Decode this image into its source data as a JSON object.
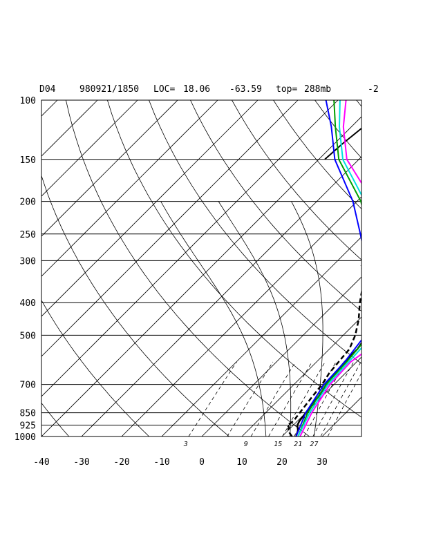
{
  "header": {
    "id": "D04",
    "datetime": "980921/1850",
    "loc_label": "LOC=",
    "lat": "18.06",
    "lon": "-63.59",
    "top_label": "top=",
    "top_value": "288mb",
    "extra": "-2"
  },
  "chart_data": {
    "type": "line",
    "title": "",
    "xlabel": "",
    "ylabel": "",
    "y_scale": "log-pressure",
    "ylim": [
      1000,
      100
    ],
    "grid": true,
    "pressure_ticks": [
      {
        "p": 100,
        "label": "100"
      },
      {
        "p": 150,
        "label": "150"
      },
      {
        "p": 200,
        "label": "200"
      },
      {
        "p": 250,
        "label": "250"
      },
      {
        "p": 300,
        "label": "300"
      },
      {
        "p": 400,
        "label": "400"
      },
      {
        "p": 500,
        "label": "500"
      },
      {
        "p": 700,
        "label": "700"
      },
      {
        "p": 850,
        "label": "850"
      },
      {
        "p": 925,
        "label": "925"
      },
      {
        "p": 1000,
        "label": "1000"
      }
    ],
    "temp_ticks": [
      {
        "t": -40,
        "label": "-40"
      },
      {
        "t": -30,
        "label": "-30"
      },
      {
        "t": -20,
        "label": "-20"
      },
      {
        "t": -10,
        "label": "-10"
      },
      {
        "t": 0,
        "label": "0"
      },
      {
        "t": 10,
        "label": "10"
      },
      {
        "t": 20,
        "label": "20"
      },
      {
        "t": 30,
        "label": "30"
      }
    ],
    "mixing_ratio_labels": [
      {
        "t": -4,
        "label": "3"
      },
      {
        "t": 11,
        "label": "9"
      },
      {
        "t": 19,
        "label": "15"
      },
      {
        "t": 24,
        "label": "21"
      },
      {
        "t": 28,
        "label": "27"
      }
    ],
    "series": [
      {
        "color": "#000000",
        "style": "solid",
        "width": 2.5,
        "points": [
          [
            1000,
            23.5
          ],
          [
            960,
            22.5
          ],
          [
            925,
            21
          ],
          [
            900,
            20.5
          ],
          [
            850,
            20
          ],
          [
            800,
            19.5
          ],
          [
            750,
            19
          ],
          [
            700,
            18
          ],
          [
            650,
            17.5
          ],
          [
            600,
            17
          ],
          [
            550,
            17
          ],
          [
            500,
            16
          ],
          [
            450,
            13.5
          ],
          [
            400,
            10
          ],
          [
            350,
            5
          ],
          [
            320,
            1.5
          ],
          [
            300,
            -1
          ]
        ]
      },
      {
        "color": "#000000",
        "style": "dashed",
        "width": 2.5,
        "points": [
          [
            1000,
            22.5
          ],
          [
            960,
            20
          ],
          [
            940,
            19.5
          ],
          [
            925,
            18.5
          ],
          [
            900,
            19
          ],
          [
            850,
            18.5
          ],
          [
            800,
            18
          ],
          [
            750,
            17.5
          ],
          [
            700,
            17
          ],
          [
            650,
            16
          ],
          [
            600,
            15.5
          ],
          [
            550,
            15
          ],
          [
            500,
            13
          ],
          [
            450,
            10
          ],
          [
            400,
            6
          ],
          [
            350,
            2
          ],
          [
            320,
            -1.5
          ],
          [
            310,
            -3
          ]
        ]
      },
      {
        "color": "#000000",
        "style": "solid",
        "width": 2,
        "points": [
          [
            100,
            -37
          ],
          [
            120,
            -37
          ],
          [
            135,
            -38
          ],
          [
            150,
            -38.5
          ]
        ]
      },
      {
        "color": "#0000ff",
        "style": "solid",
        "width": 2,
        "points": [
          [
            1000,
            23.5
          ],
          [
            850,
            20
          ],
          [
            700,
            17.5
          ],
          [
            600,
            17
          ],
          [
            500,
            15.5
          ],
          [
            400,
            9
          ],
          [
            300,
            -3
          ],
          [
            250,
            -11
          ],
          [
            200,
            -21
          ],
          [
            150,
            -36
          ],
          [
            120,
            -45
          ],
          [
            100,
            -53
          ]
        ]
      },
      {
        "color": "#00a000",
        "style": "solid",
        "width": 2,
        "points": [
          [
            1000,
            24
          ],
          [
            850,
            20.5
          ],
          [
            700,
            18
          ],
          [
            600,
            17.5
          ],
          [
            500,
            16.5
          ],
          [
            400,
            11
          ],
          [
            300,
            -1
          ],
          [
            250,
            -9
          ],
          [
            200,
            -19
          ],
          [
            150,
            -35
          ],
          [
            120,
            -44
          ],
          [
            100,
            -51
          ]
        ]
      },
      {
        "color": "#00e0e0",
        "style": "solid",
        "width": 2,
        "points": [
          [
            1000,
            24
          ],
          [
            850,
            21
          ],
          [
            700,
            18.5
          ],
          [
            600,
            18
          ],
          [
            500,
            17.5
          ],
          [
            400,
            12
          ],
          [
            300,
            0.5
          ],
          [
            250,
            -7.5
          ],
          [
            200,
            -18
          ],
          [
            150,
            -34
          ],
          [
            120,
            -43
          ],
          [
            100,
            -49.5
          ]
        ]
      },
      {
        "color": "#ff00ff",
        "style": "solid",
        "width": 2,
        "points": [
          [
            1000,
            24.5
          ],
          [
            850,
            21.5
          ],
          [
            700,
            19
          ],
          [
            600,
            18.5
          ],
          [
            560,
            19.5
          ],
          [
            500,
            18.5
          ],
          [
            400,
            14
          ],
          [
            350,
            8
          ],
          [
            300,
            2.5
          ],
          [
            250,
            -5
          ],
          [
            200,
            -16
          ],
          [
            150,
            -33
          ],
          [
            120,
            -42
          ],
          [
            100,
            -48
          ]
        ]
      }
    ]
  }
}
